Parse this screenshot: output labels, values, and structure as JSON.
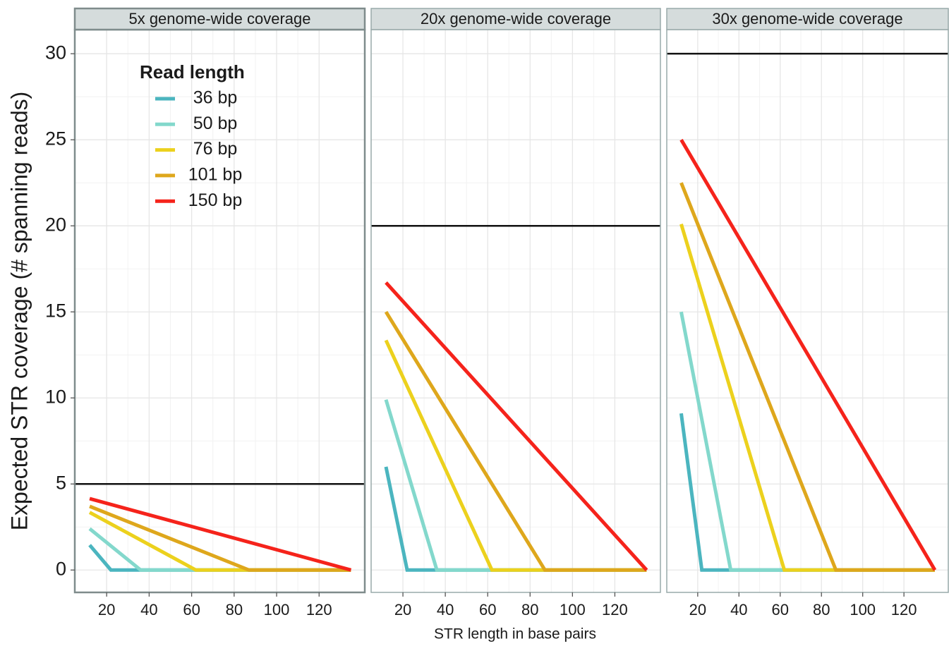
{
  "chart_data": [
    {
      "type": "line",
      "title": "5x genome-wide coverage",
      "ylabel": "Expected STR coverage (# spanning reads)",
      "legend_title": "Read length",
      "xlim": [
        5,
        141.5
      ],
      "xticks": [
        20,
        40,
        60,
        80,
        100,
        120
      ],
      "ylim": [
        -1.3,
        31.4
      ],
      "yticks": [
        0,
        5,
        10,
        15,
        20,
        25,
        30
      ],
      "hline": 5,
      "grid": true,
      "series": [
        {
          "name": "36 bp",
          "color": "#4bb5bf",
          "x": [
            12,
            22,
            135
          ],
          "values": [
            1.45,
            0,
            0
          ]
        },
        {
          "name": "50 bp",
          "color": "#83d8cc",
          "x": [
            12,
            36,
            135
          ],
          "values": [
            2.4,
            0,
            0
          ]
        },
        {
          "name": "76 bp",
          "color": "#ecd11d",
          "x": [
            12,
            62,
            135
          ],
          "values": [
            3.35,
            0,
            0
          ]
        },
        {
          "name": "101 bp",
          "color": "#dea71c",
          "x": [
            12,
            87,
            135
          ],
          "values": [
            3.7,
            0,
            0
          ]
        },
        {
          "name": "150 bp",
          "color": "#f5231b",
          "x": [
            12,
            135
          ],
          "values": [
            4.15,
            0
          ]
        }
      ]
    },
    {
      "type": "line",
      "title": "20x genome-wide coverage",
      "xlabel": "STR length in base pairs",
      "xlim": [
        5,
        141.5
      ],
      "xticks": [
        20,
        40,
        60,
        80,
        100,
        120
      ],
      "ylim": [
        -1.3,
        31.4
      ],
      "yticks": [
        0,
        5,
        10,
        15,
        20,
        25,
        30
      ],
      "hline": 20,
      "grid": true,
      "series": [
        {
          "color": "#4bb5bf",
          "x": [
            12,
            22,
            135
          ],
          "values": [
            6.0,
            0,
            0
          ]
        },
        {
          "color": "#83d8cc",
          "x": [
            12,
            36,
            135
          ],
          "values": [
            9.9,
            0,
            0
          ]
        },
        {
          "color": "#ecd11d",
          "x": [
            12,
            62,
            135
          ],
          "values": [
            13.35,
            0,
            0
          ]
        },
        {
          "color": "#dea71c",
          "x": [
            12,
            87,
            135
          ],
          "values": [
            15.0,
            0,
            0
          ]
        },
        {
          "color": "#f5231b",
          "x": [
            12,
            135
          ],
          "values": [
            16.7,
            0
          ]
        }
      ]
    },
    {
      "type": "line",
      "title": "30x genome-wide coverage",
      "xlim": [
        5,
        141.5
      ],
      "xticks": [
        20,
        40,
        60,
        80,
        100,
        120
      ],
      "ylim": [
        -1.3,
        31.4
      ],
      "yticks": [
        0,
        5,
        10,
        15,
        20,
        25,
        30
      ],
      "hline": 30,
      "grid": true,
      "series": [
        {
          "color": "#4bb5bf",
          "x": [
            12,
            22,
            135
          ],
          "values": [
            9.1,
            0,
            0
          ]
        },
        {
          "color": "#83d8cc",
          "x": [
            12,
            36,
            135
          ],
          "values": [
            15.0,
            0,
            0
          ]
        },
        {
          "color": "#ecd11d",
          "x": [
            12,
            62,
            135
          ],
          "values": [
            20.1,
            0,
            0
          ]
        },
        {
          "color": "#dea71c",
          "x": [
            12,
            87,
            135
          ],
          "values": [
            22.5,
            0,
            0
          ]
        },
        {
          "color": "#f5231b",
          "x": [
            12,
            135
          ],
          "values": [
            25.0,
            0
          ]
        }
      ]
    }
  ]
}
